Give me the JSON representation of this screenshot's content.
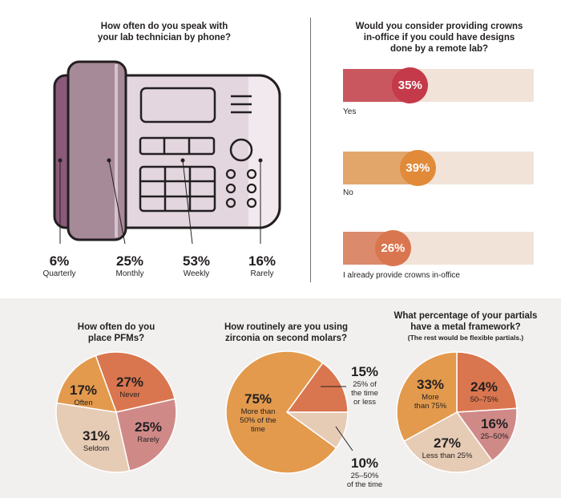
{
  "phone_chart": {
    "title_line1": "How often do you speak with",
    "title_line2": "your lab technician by phone?",
    "stats": [
      {
        "pct": "6%",
        "label": "Quarterly"
      },
      {
        "pct": "25%",
        "label": "Monthly"
      },
      {
        "pct": "53%",
        "label": "Weekly"
      },
      {
        "pct": "16%",
        "label": "Rarely"
      }
    ]
  },
  "crowns_chart": {
    "title_line1": "Would you consider providing crowns",
    "title_line2": "in-office if you could have designs",
    "title_line3": "done by a remote lab?",
    "bars": [
      {
        "label": "Yes",
        "value": 35,
        "display": "35%",
        "color": "#c9575f"
      },
      {
        "label": "No",
        "value": 39,
        "display": "39%",
        "color": "#e2a66b"
      },
      {
        "label": "I already provide crowns in-office",
        "value": 26,
        "display": "26%",
        "color": "#db8a6b"
      }
    ]
  },
  "pfm_chart": {
    "title_line1": "How often do you",
    "title_line2": "place PFMs?"
  },
  "zirconia_chart": {
    "title_line1": "How routinely are you using",
    "title_line2": "zirconia on second molars?"
  },
  "partials_chart": {
    "title_line1": "What percentage of your partials",
    "title_line2": "have a metal framework?",
    "subtitle": "(The rest would be flexible partials.)"
  },
  "chart_data": [
    {
      "type": "bar",
      "title": "How often do you speak with your lab technician by phone?",
      "categories": [
        "Quarterly",
        "Monthly",
        "Weekly",
        "Rarely"
      ],
      "values": [
        6,
        25,
        53,
        16
      ]
    },
    {
      "type": "bar",
      "title": "Would you consider providing crowns in-office if you could have designs done by a remote lab?",
      "categories": [
        "Yes",
        "No",
        "I already provide crowns in-office"
      ],
      "values": [
        35,
        39,
        26
      ],
      "ylim": [
        0,
        100
      ]
    },
    {
      "type": "pie",
      "title": "How often do you place PFMs?",
      "slices": [
        {
          "pct": "27%",
          "label": "Never",
          "value": 27,
          "color": "#d9764f"
        },
        {
          "pct": "25%",
          "label": "Rarely",
          "value": 25,
          "color": "#cf8a88"
        },
        {
          "pct": "31%",
          "label": "Seldom",
          "value": 31,
          "color": "#e6cbb5"
        },
        {
          "pct": "17%",
          "label": "Often",
          "value": 17,
          "color": "#e39a4d"
        }
      ]
    },
    {
      "type": "pie",
      "title": "How routinely are you using zirconia on second molars?",
      "slices": [
        {
          "pct": "15%",
          "label": "25% of the time or less",
          "value": 15,
          "color": "#d9764f"
        },
        {
          "pct": "10%",
          "label": "25–50% of the time",
          "value": 10,
          "color": "#e6cbb5"
        },
        {
          "pct": "75%",
          "label": "More than 50% of the time",
          "value": 75,
          "color": "#e39a4d"
        }
      ]
    },
    {
      "type": "pie",
      "title": "What percentage of your partials have a metal framework?",
      "subtitle": "(The rest would be flexible partials.)",
      "slices": [
        {
          "pct": "24%",
          "label": "50–75%",
          "value": 24,
          "color": "#d9764f"
        },
        {
          "pct": "16%",
          "label": "25–50%",
          "value": 16,
          "color": "#cf8a88"
        },
        {
          "pct": "27%",
          "label": "Less than 25%",
          "value": 27,
          "color": "#e6cbb5"
        },
        {
          "pct": "33%",
          "label": "More than 75%",
          "value": 33,
          "color": "#e39a4d"
        }
      ]
    }
  ]
}
